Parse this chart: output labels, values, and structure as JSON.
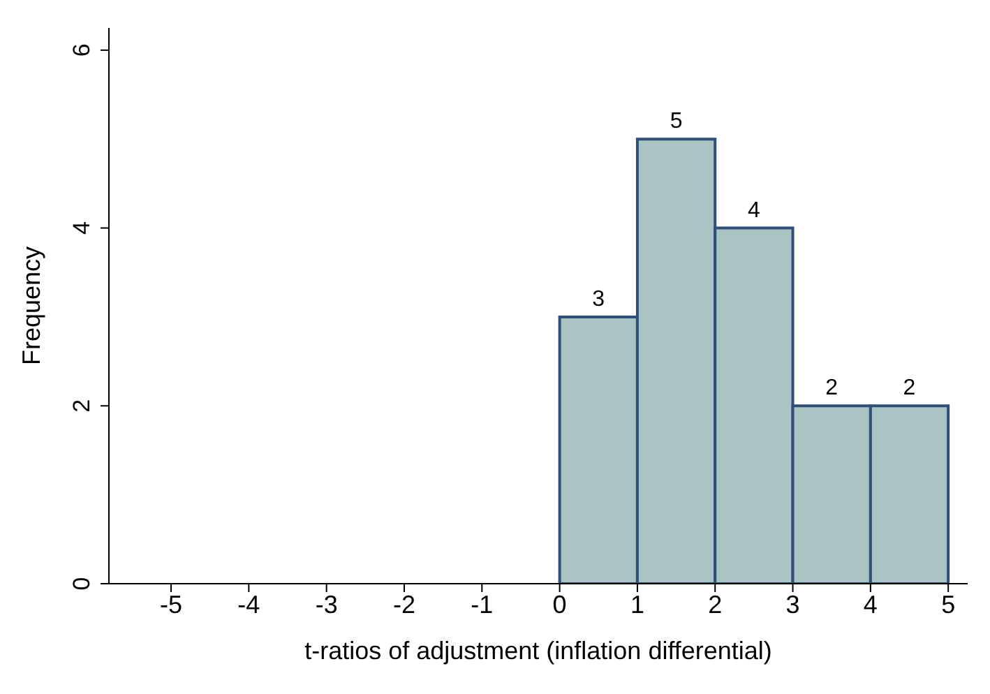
{
  "chart_data": {
    "type": "histogram",
    "xlabel": "t-ratios of adjustment (inflation differential)",
    "ylabel": "Frequency",
    "bins": [
      0,
      1,
      2,
      3,
      4,
      5
    ],
    "values": [
      3,
      5,
      4,
      2,
      2
    ],
    "color": "#a9c4c3",
    "xlim": [
      -5.8,
      5.25
    ],
    "xticks": [
      -5,
      -4,
      -3,
      -2,
      -1,
      0,
      1,
      2,
      3,
      4,
      5
    ],
    "ylim": [
      0,
      6.25
    ],
    "yticks": [
      0,
      2,
      4,
      6
    ],
    "data_labels": true
  }
}
